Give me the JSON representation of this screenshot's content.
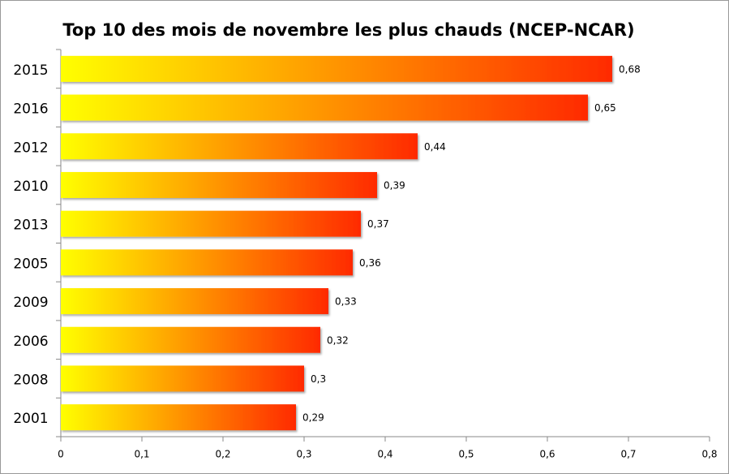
{
  "chart_data": {
    "type": "hbar",
    "title": "Top 10 des mois de novembre les plus chauds (NCEP-NCAR)",
    "categories": [
      "2015",
      "2016",
      "2012",
      "2010",
      "2013",
      "2005",
      "2009",
      "2006",
      "2008",
      "2001"
    ],
    "values": [
      0.68,
      0.65,
      0.44,
      0.39,
      0.37,
      0.36,
      0.33,
      0.32,
      0.3,
      0.29
    ],
    "value_labels": [
      "0,68",
      "0,65",
      "0,44",
      "0,39",
      "0,37",
      "0,36",
      "0,33",
      "0,32",
      "0,3",
      "0,29"
    ],
    "gradient": [
      "#ffff00",
      "#ff2a00"
    ],
    "xlim": [
      0,
      0.8
    ],
    "xticks": [
      0,
      {
        "value": 0.1,
        "label": "0,1"
      },
      {
        "value": 0.2,
        "label": "0,2"
      },
      {
        "value": 0.3,
        "label": "0,3"
      },
      {
        "value": 0.4,
        "label": "0,4"
      },
      {
        "value": 0.5,
        "label": "0,5"
      },
      {
        "value": 0.6,
        "label": "0,6"
      },
      {
        "value": 0.7,
        "label": "0,7"
      },
      {
        "value": 0.8,
        "label": "0,8"
      }
    ],
    "grid": false
  }
}
